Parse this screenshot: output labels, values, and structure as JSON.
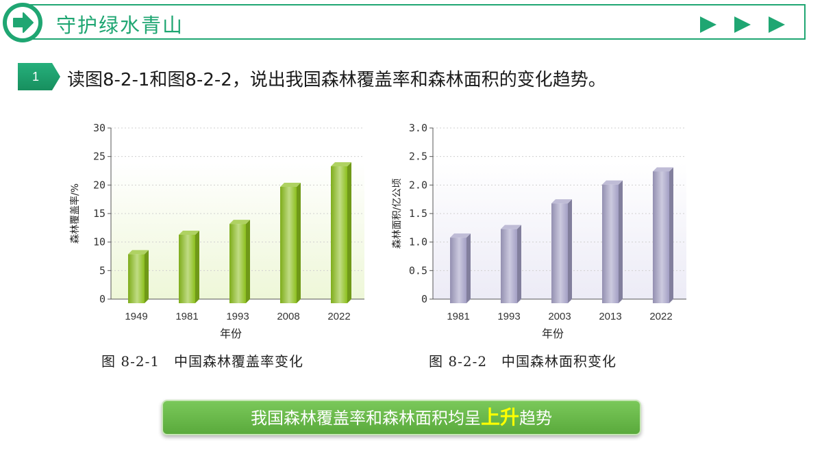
{
  "header": {
    "title": "守护绿水青山",
    "colors": {
      "accent": "#1fa672"
    }
  },
  "question": {
    "number": "1",
    "text": "读图8-2-1和图8-2-2，说出我国森林覆盖率和森林面积的变化趋势。"
  },
  "chart_data": [
    {
      "type": "bar",
      "caption": "图 8-2-1　中国森林覆盖率变化",
      "categories": [
        "1949",
        "1981",
        "1993",
        "2008",
        "2022"
      ],
      "values": [
        8.6,
        12.0,
        13.9,
        20.4,
        24.0
      ],
      "xlabel": "年份",
      "ylabel": "森林覆盖率/%",
      "ylim": [
        0,
        30
      ],
      "yticks": [
        "0",
        "5",
        "10",
        "15",
        "20",
        "25",
        "30"
      ],
      "grid": true,
      "bar_color": "#8cbf1e"
    },
    {
      "type": "bar",
      "caption": "图 8-2-2　中国森林面积变化",
      "categories": [
        "1981",
        "1993",
        "2003",
        "2013",
        "2022"
      ],
      "values": [
        1.15,
        1.3,
        1.75,
        2.08,
        2.31
      ],
      "xlabel": "年份",
      "ylabel": "森林面积/亿公顷",
      "ylim": [
        0,
        3.0
      ],
      "yticks": [
        "0",
        "0.5",
        "1.0",
        "1.5",
        "2.0",
        "2.5",
        "3.0"
      ],
      "grid": true,
      "bar_color": "#a39fc4"
    }
  ],
  "answer": {
    "prefix": "我国森林覆盖率和森林面积均呈",
    "highlight": "上升",
    "suffix": "趋势"
  }
}
